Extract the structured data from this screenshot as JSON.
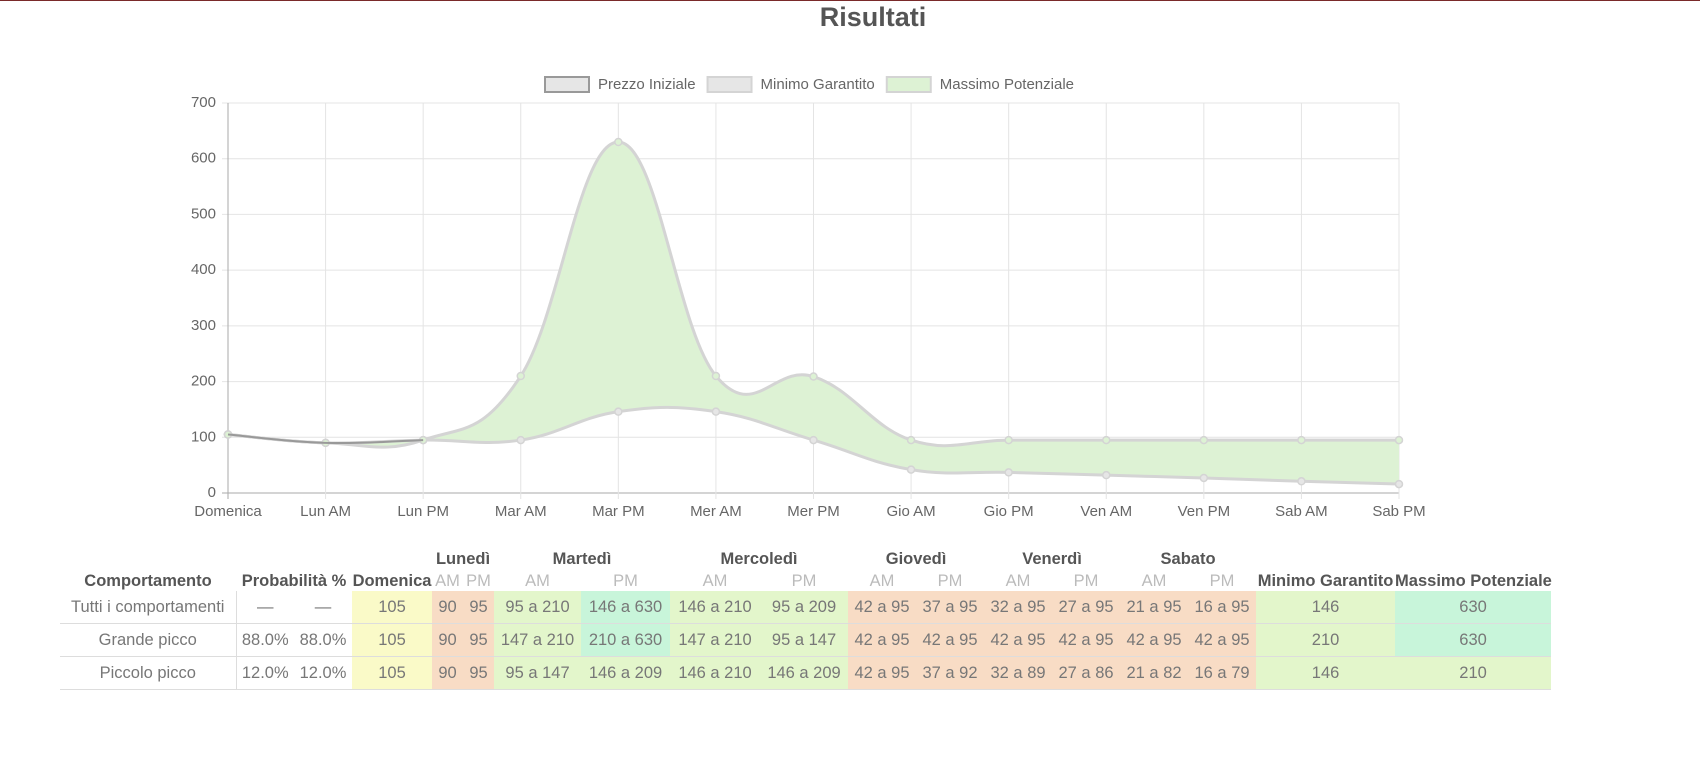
{
  "title": "Risultati",
  "chart_data": {
    "type": "line",
    "categories": [
      "Domenica",
      "Lun AM",
      "Lun PM",
      "Mar AM",
      "Mar PM",
      "Mer AM",
      "Mer PM",
      "Gio AM",
      "Gio PM",
      "Ven AM",
      "Ven PM",
      "Sab AM",
      "Sab PM"
    ],
    "series": [
      {
        "name": "Prezzo Iniziale",
        "color": "#999999",
        "fill": "#e6e6e6",
        "values": [
          105,
          null,
          null,
          null,
          null,
          null,
          null,
          null,
          null,
          null,
          null,
          null,
          null
        ]
      },
      {
        "name": "Minimo Garantito",
        "color": "#d4d4d4",
        "fill": "#e6e6e6",
        "values": [
          105,
          90,
          95,
          95,
          146,
          146,
          95,
          42,
          37,
          32,
          27,
          21,
          16
        ]
      },
      {
        "name": "Massimo Potenziale",
        "color": "#d4d4d4",
        "fill": "#ddf2d4",
        "values": [
          105,
          90,
          95,
          210,
          630,
          210,
          209,
          95,
          95,
          95,
          95,
          95,
          95
        ]
      }
    ],
    "ylim": [
      0,
      700
    ],
    "yticks": [
      0,
      100,
      200,
      300,
      400,
      500,
      600,
      700
    ],
    "grid": true,
    "legend": "top"
  },
  "table": {
    "headers": {
      "behavior": "Comportamento",
      "probability": "Probabilità %",
      "sunday": "Domenica",
      "days": [
        "Lunedì",
        "Martedì",
        "Mercoledì",
        "Giovedì",
        "Venerdì",
        "Sabato"
      ],
      "subheaders": [
        "AM",
        "PM",
        "AM",
        "PM",
        "AM",
        "PM",
        "AM",
        "PM",
        "AM",
        "PM",
        "AM",
        "PM"
      ],
      "min": "Minimo Garantito",
      "max": "Massimo Potenziale"
    },
    "rows": [
      {
        "cells": [
          "Tutti i comportamenti",
          "—",
          "—",
          "105",
          "90",
          "95",
          "95 a 210",
          "146 a 630",
          "146 a 210",
          "95 a 209",
          "42 a 95",
          "37 a 95",
          "32 a 95",
          "27 a 95",
          "21 a 95",
          "16 a 95",
          "146",
          "630"
        ],
        "fills": [
          "#ffffff",
          "#ffffff",
          "#ffffff",
          "#fafac8",
          "#f8dcc5",
          "#f8dcc5",
          "#e3f6cb",
          "#c8f5da",
          "#e3f6cb",
          "#e3f6cb",
          "#f8dcc5",
          "#f8dcc5",
          "#f8dcc5",
          "#f8dcc5",
          "#f8dcc5",
          "#f8dcc5",
          "#e3f6cb",
          "#c8f5da"
        ]
      },
      {
        "cells": [
          "Grande picco",
          "88.0%",
          "88.0%",
          "105",
          "90",
          "95",
          "147 a 210",
          "210 a 630",
          "147 a 210",
          "95 a 147",
          "42 a 95",
          "42 a 95",
          "42 a 95",
          "42 a 95",
          "42 a 95",
          "42 a 95",
          "210",
          "630"
        ],
        "fills": [
          "#ffffff",
          "#ffffff",
          "#ffffff",
          "#fafac8",
          "#f8dcc5",
          "#f8dcc5",
          "#e3f6cb",
          "#c8f5da",
          "#e3f6cb",
          "#e3f6cb",
          "#f8dcc5",
          "#f8dcc5",
          "#f8dcc5",
          "#f8dcc5",
          "#f8dcc5",
          "#f8dcc5",
          "#e3f6cb",
          "#c8f5da"
        ]
      },
      {
        "cells": [
          "Piccolo picco",
          "12.0%",
          "12.0%",
          "105",
          "90",
          "95",
          "95 a 147",
          "146 a 209",
          "146 a 210",
          "146 a 209",
          "42 a 95",
          "37 a 92",
          "32 a 89",
          "27 a 86",
          "21 a 82",
          "16 a 79",
          "146",
          "210"
        ],
        "fills": [
          "#ffffff",
          "#ffffff",
          "#ffffff",
          "#fafac8",
          "#f8dcc5",
          "#f8dcc5",
          "#e3f6cb",
          "#e3f6cb",
          "#e3f6cb",
          "#e3f6cb",
          "#f8dcc5",
          "#f8dcc5",
          "#f8dcc5",
          "#f8dcc5",
          "#f8dcc5",
          "#f8dcc5",
          "#e3f6cb",
          "#e3f6cb"
        ]
      }
    ]
  }
}
